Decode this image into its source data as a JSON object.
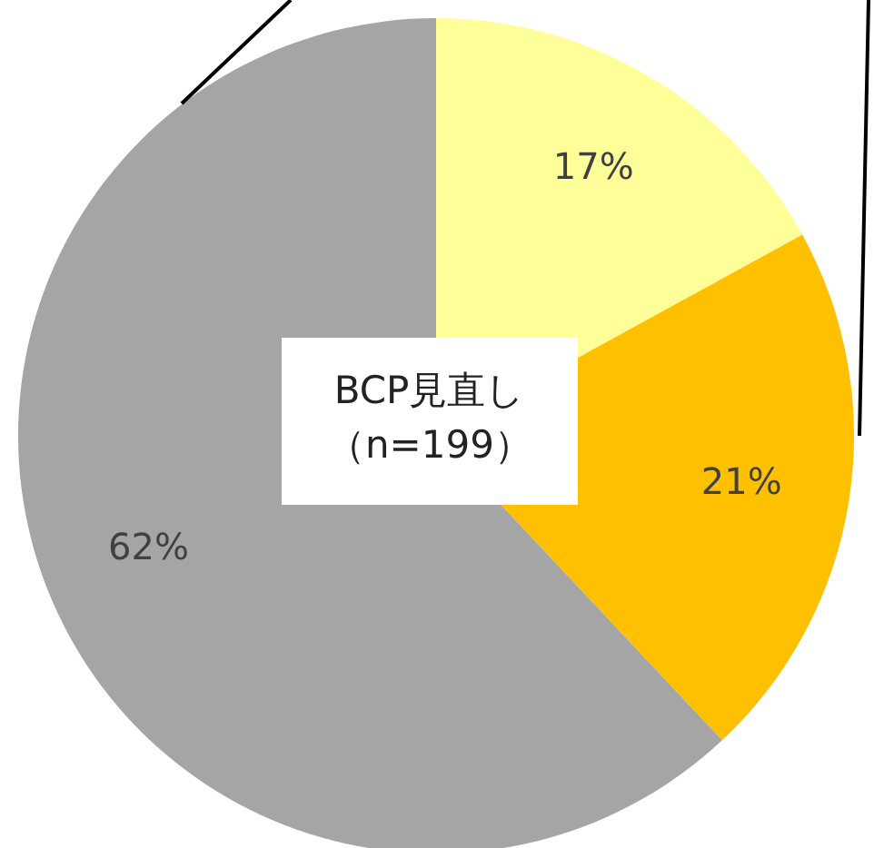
{
  "chart_data": {
    "type": "pie",
    "title": "BCP見直し",
    "subtitle": "（n=199）",
    "categories": [
      null,
      null,
      null
    ],
    "values": [
      17,
      21,
      62
    ],
    "value_labels": [
      "17%",
      "21%",
      "62%"
    ],
    "colors": [
      "#ffff99",
      "#ffc000",
      "#a5a5a5"
    ]
  }
}
